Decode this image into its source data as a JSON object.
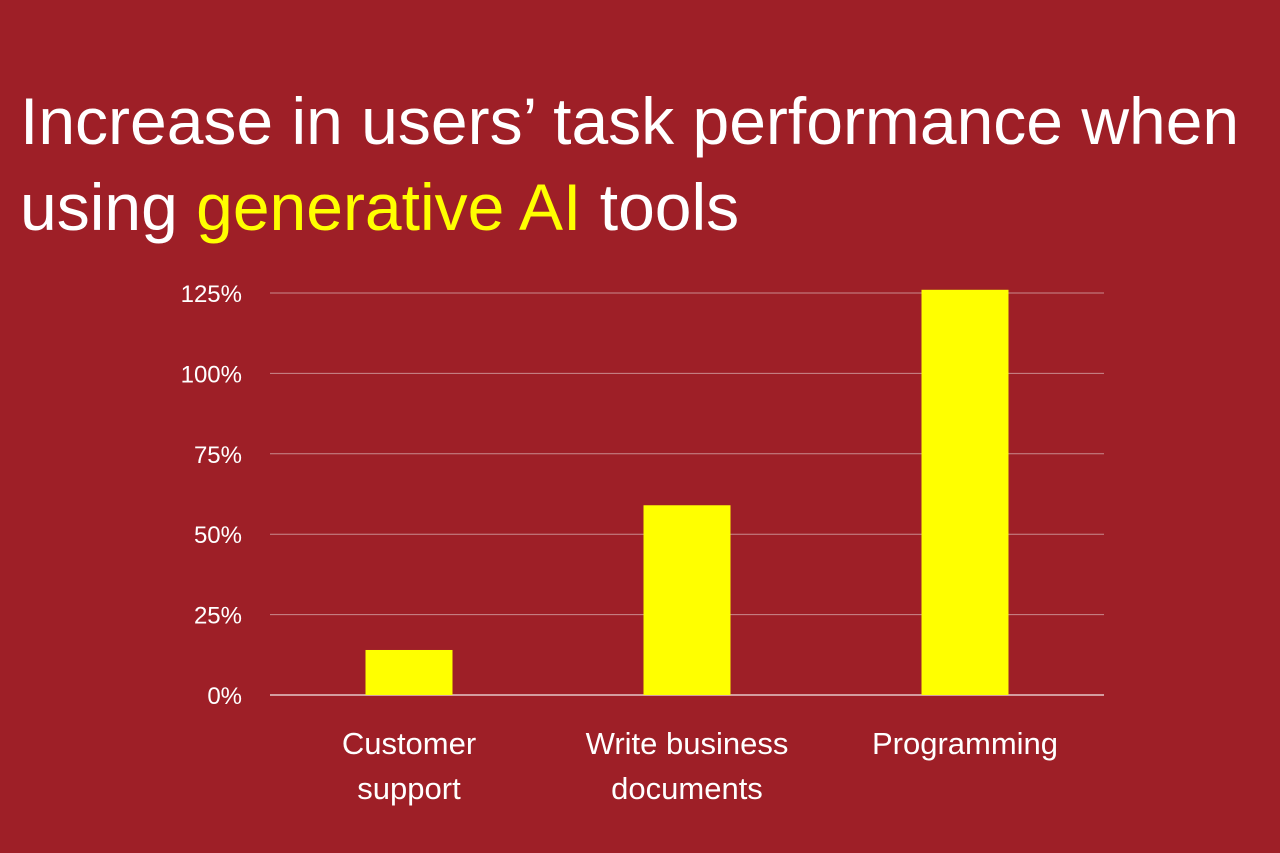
{
  "title": {
    "part1": "Increase in users’ task performance when using ",
    "highlight": "generative AI",
    "part2": " tools"
  },
  "colors": {
    "background": "#9e1f27",
    "bar": "#ffff00",
    "gridline": "#c98a8e",
    "text": "#ffffff",
    "highlight": "#ffff00"
  },
  "chart_data": {
    "type": "bar",
    "categories": [
      [
        "Customer",
        "support"
      ],
      [
        "Write business",
        "documents"
      ],
      [
        "Programming"
      ]
    ],
    "values": [
      14,
      59,
      126
    ],
    "ylim": [
      0,
      125
    ],
    "yticks": [
      0,
      25,
      50,
      75,
      100,
      125
    ],
    "ytick_labels": [
      "0%",
      "25%",
      "50%",
      "75%",
      "100%",
      "125%"
    ],
    "grid": true,
    "legend": "none"
  }
}
